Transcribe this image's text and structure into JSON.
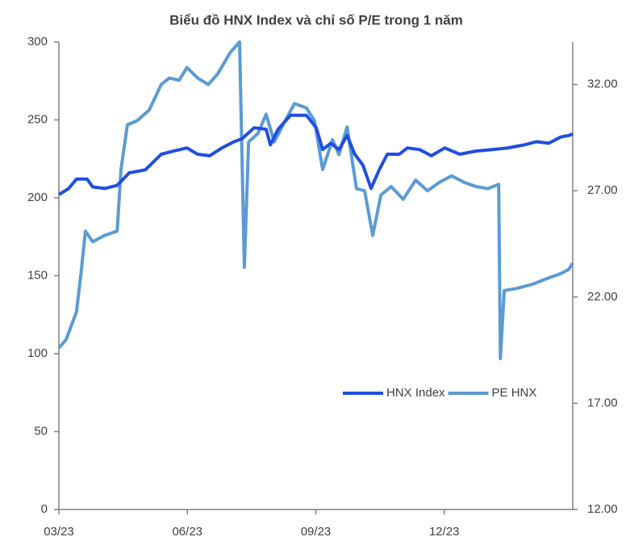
{
  "chart_data": {
    "type": "line",
    "title": "Biểu đồ HNX Index và chỉ số P/E trong 1 năm",
    "xlim": [
      0,
      12
    ],
    "xticks": [
      {
        "value": 0,
        "label": "03/23"
      },
      {
        "value": 3,
        "label": "06/23"
      },
      {
        "value": 6,
        "label": "09/23"
      },
      {
        "value": 9,
        "label": "12/23"
      }
    ],
    "ylim": [
      0,
      300
    ],
    "yticks": [
      0,
      50,
      100,
      150,
      200,
      250,
      300
    ],
    "y2lim": [
      12,
      34
    ],
    "y2ticks": [
      {
        "value": 12,
        "label": "12.00"
      },
      {
        "value": 17,
        "label": "17.00"
      },
      {
        "value": 22,
        "label": "22.00"
      },
      {
        "value": 27,
        "label": "27.00"
      },
      {
        "value": 32,
        "label": "32.00"
      }
    ],
    "grid": false,
    "legend": "right",
    "series": [
      {
        "name": "HNX Index",
        "color": "#1f4ee0",
        "x": [
          0,
          0.23,
          0.41,
          0.66,
          0.79,
          1.07,
          1.36,
          1.64,
          2.02,
          2.39,
          2.68,
          2.99,
          3.24,
          3.52,
          3.81,
          4.09,
          4.28,
          4.56,
          4.84,
          4.94,
          5.12,
          5.41,
          5.78,
          6.01,
          6.16,
          6.35,
          6.54,
          6.73,
          6.91,
          7.1,
          7.29,
          7.48,
          7.67,
          7.95,
          8.14,
          8.42,
          8.7,
          9.01,
          9.36,
          9.74,
          10.12,
          10.49,
          10.87,
          11.15,
          11.44,
          11.72,
          11.91,
          12
        ],
        "values": [
          202,
          206,
          212,
          212,
          207,
          206,
          208,
          216,
          218,
          228,
          230,
          232,
          228,
          227,
          232,
          236,
          238,
          245,
          244,
          234,
          244,
          253,
          253,
          245,
          231,
          235,
          231,
          240,
          228,
          221,
          206,
          218,
          228,
          228,
          232,
          231,
          227,
          232,
          228,
          230,
          231,
          232,
          234,
          236,
          235,
          239,
          240,
          241
        ]
      },
      {
        "name": "PE HNX",
        "color": "#5b9bd5",
        "axis": "y2",
        "x": [
          0,
          0.17,
          0.41,
          0.51,
          0.62,
          0.79,
          1.07,
          1.36,
          1.45,
          1.6,
          1.83,
          2.11,
          2.39,
          2.58,
          2.81,
          2.99,
          3.24,
          3.49,
          3.71,
          4.0,
          4.22,
          4.33,
          4.43,
          4.65,
          4.84,
          5.03,
          5.26,
          5.5,
          5.78,
          5.97,
          6.16,
          6.39,
          6.54,
          6.73,
          6.95,
          7.14,
          7.33,
          7.52,
          7.76,
          8.04,
          8.33,
          8.61,
          8.89,
          9.17,
          9.46,
          9.74,
          10.02,
          10.27,
          10.31,
          10.4,
          10.68,
          11.06,
          11.44,
          11.72,
          11.91,
          12
        ],
        "values": [
          19.6,
          20.0,
          21.3,
          23.0,
          25.1,
          24.6,
          24.9,
          25.1,
          28.0,
          30.1,
          30.3,
          30.8,
          32.0,
          32.3,
          32.2,
          32.8,
          32.3,
          32.0,
          32.5,
          33.5,
          34.0,
          23.4,
          29.3,
          29.7,
          30.6,
          29.3,
          30.2,
          31.1,
          30.9,
          30.3,
          28.0,
          29.4,
          28.7,
          30.0,
          27.1,
          27.0,
          24.9,
          26.8,
          27.2,
          26.6,
          27.5,
          27.0,
          27.4,
          27.7,
          27.4,
          27.2,
          27.1,
          27.3,
          19.1,
          22.3,
          22.4,
          22.6,
          22.9,
          23.1,
          23.3,
          23.6
        ]
      }
    ]
  }
}
